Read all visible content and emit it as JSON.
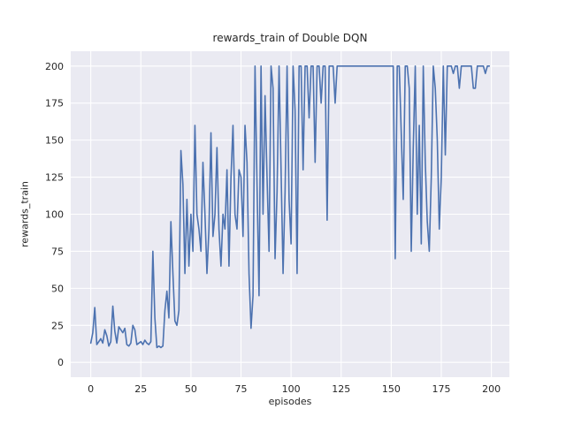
{
  "chart_data": {
    "type": "line",
    "title": "rewards_train of Double DQN",
    "xlabel": "episodes",
    "ylabel": "rewards_train",
    "xticks": [
      0,
      25,
      50,
      75,
      100,
      125,
      150,
      175,
      200
    ],
    "yticks": [
      0,
      25,
      50,
      75,
      100,
      125,
      150,
      175,
      200
    ],
    "xlim": [
      -10,
      209
    ],
    "ylim": [
      -10,
      210
    ],
    "x_start": 0,
    "grid": "on",
    "legend": "none",
    "plot_bg": "#eaeaf2",
    "grid_color": "#ffffff",
    "line_color": "#4c72b0",
    "series_name": "rewards_train",
    "x": "episode index 0..199, step 1",
    "values": [
      13,
      20,
      37,
      12,
      14,
      16,
      13,
      22,
      18,
      11,
      14,
      38,
      21,
      13,
      24,
      22,
      20,
      23,
      12,
      11,
      13,
      25,
      22,
      12,
      13,
      14,
      12,
      15,
      13,
      12,
      14,
      75,
      30,
      10,
      11,
      10,
      11,
      35,
      48,
      30,
      95,
      60,
      28,
      25,
      35,
      143,
      120,
      60,
      110,
      65,
      100,
      75,
      160,
      100,
      90,
      75,
      135,
      100,
      60,
      90,
      155,
      85,
      100,
      145,
      90,
      65,
      100,
      90,
      130,
      65,
      125,
      160,
      100,
      90,
      130,
      125,
      85,
      160,
      135,
      60,
      23,
      45,
      200,
      120,
      45,
      200,
      100,
      180,
      125,
      75,
      200,
      185,
      70,
      115,
      200,
      130,
      60,
      115,
      200,
      110,
      80,
      200,
      170,
      60,
      200,
      200,
      130,
      200,
      200,
      165,
      200,
      200,
      135,
      200,
      200,
      175,
      200,
      200,
      96,
      200,
      200,
      200,
      175,
      200,
      200,
      200,
      200,
      200,
      200,
      200,
      200,
      200,
      200,
      200,
      200,
      200,
      200,
      200,
      200,
      200,
      200,
      200,
      200,
      200,
      200,
      200,
      200,
      200,
      200,
      200,
      200,
      200,
      70,
      200,
      200,
      155,
      110,
      200,
      200,
      185,
      75,
      145,
      200,
      100,
      160,
      80,
      200,
      135,
      95,
      75,
      125,
      200,
      185,
      150,
      90,
      125,
      200,
      140,
      200,
      200,
      200,
      195,
      200,
      200,
      185,
      200,
      200,
      200,
      200,
      200,
      200,
      185,
      185,
      200,
      200,
      200,
      200,
      195,
      200,
      200
    ]
  }
}
